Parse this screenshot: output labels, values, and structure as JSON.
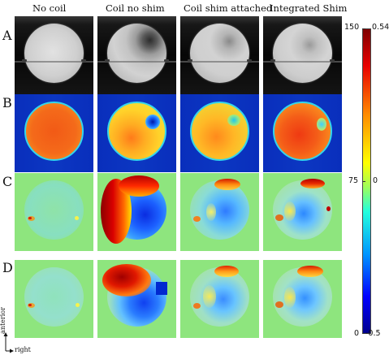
{
  "column_headers": [
    "No coil",
    "Coil no shim",
    "Coil shim attached",
    "Integrated Shim"
  ],
  "row_labels": [
    "A",
    "B",
    "C",
    "D"
  ],
  "colorbar": {
    "left_ticks": [
      "150",
      "75",
      "0"
    ],
    "right_ticks": [
      "0.54",
      "0",
      "-0.5"
    ]
  },
  "axis_labels": {
    "vertical": "anterior",
    "horizontal": "right"
  },
  "colors": {
    "panel_b_background": "#0c37c2",
    "panel_cd_background": "#8ee57e"
  }
}
